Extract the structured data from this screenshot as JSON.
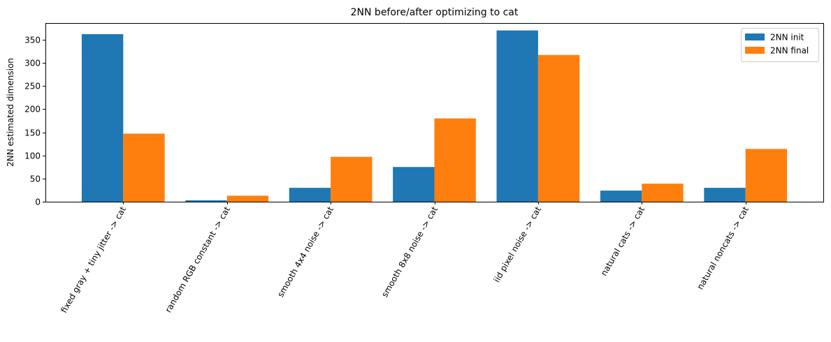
{
  "chart_data": {
    "type": "bar",
    "title": "2NN before/after optimizing to cat",
    "xlabel": "",
    "ylabel": "2NN estimated dimension",
    "ylim": [
      0,
      386
    ],
    "yticks": [
      0,
      50,
      100,
      150,
      200,
      250,
      300,
      350
    ],
    "categories": [
      "fixed gray + tiny jitter -> cat",
      "random RGB constant -> cat",
      "smooth 4x4 noise -> cat",
      "smooth 8x8 noise -> cat",
      "iid pixel noise -> cat",
      "natural cats -> cat",
      "natural noncats -> cat"
    ],
    "series": [
      {
        "name": "2NN init",
        "color": "#1f77b4",
        "values": [
          362,
          3,
          30,
          75,
          370,
          24,
          30
        ]
      },
      {
        "name": "2NN final",
        "color": "#ff7f0e",
        "values": [
          147,
          13,
          97,
          180,
          317,
          39,
          114
        ]
      }
    ],
    "legend_position": "top-right",
    "grid": false
  }
}
